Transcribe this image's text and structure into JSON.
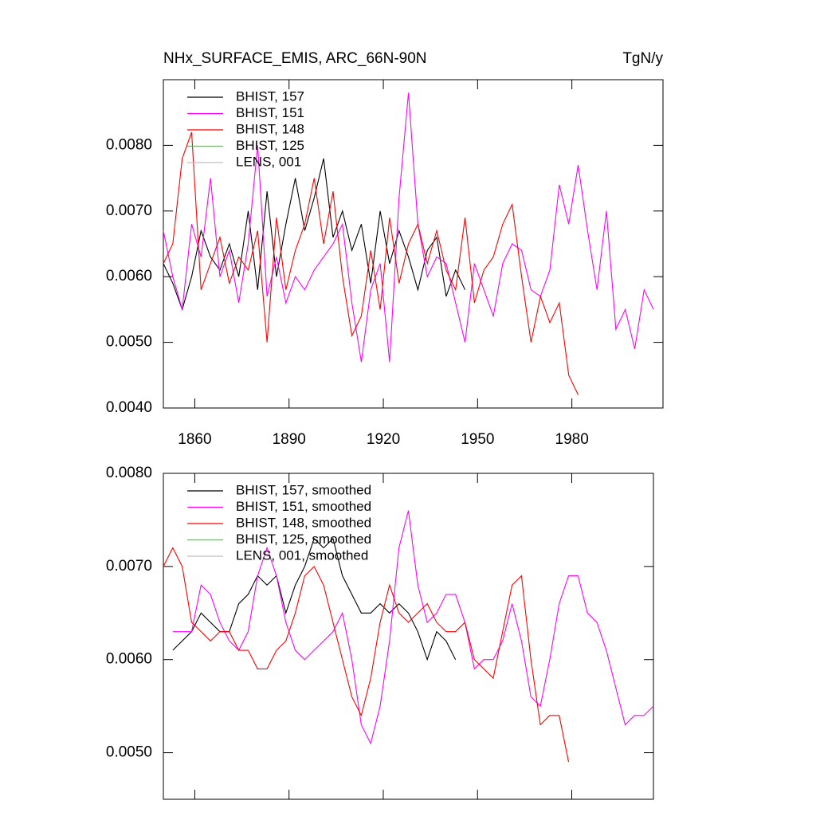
{
  "chart_data": [
    {
      "type": "line",
      "title": "NHx_SURFACE_EMIS, ARC_66N-90N",
      "right_title": "TgN/y",
      "legend": "upper left",
      "show_xtick_labels": true,
      "x": [
        1850,
        1853,
        1856,
        1859,
        1862,
        1865,
        1868,
        1871,
        1874,
        1877,
        1880,
        1883,
        1886,
        1889,
        1892,
        1895,
        1898,
        1901,
        1904,
        1907,
        1910,
        1913,
        1916,
        1919,
        1922,
        1925,
        1928,
        1931,
        1934,
        1937,
        1940,
        1943,
        1946,
        1949,
        1952,
        1955,
        1958,
        1961,
        1964,
        1967,
        1970,
        1973,
        1976,
        1979,
        1982,
        1985,
        1988,
        1991,
        1994,
        1997,
        2000,
        2003,
        2006
      ],
      "xlim": [
        1850,
        2009
      ],
      "ylim": [
        0.004,
        0.009
      ],
      "xticks": [
        1860,
        1890,
        1920,
        1950,
        1980
      ],
      "yticks": [
        {
          "value": 0.004,
          "label": "0.0040"
        },
        {
          "value": 0.005,
          "label": "0.0050"
        },
        {
          "value": 0.006,
          "label": "0.0060"
        },
        {
          "value": 0.007,
          "label": "0.0070"
        },
        {
          "value": 0.008,
          "label": "0.0080"
        }
      ],
      "series": [
        {
          "name": "BHIST, 157",
          "color": "#000000",
          "values": [
            0.0062,
            0.0059,
            0.0055,
            0.006,
            0.0067,
            0.0063,
            0.0061,
            0.0065,
            0.006,
            0.007,
            0.0058,
            0.0073,
            0.006,
            0.0068,
            0.0075,
            0.0067,
            0.0072,
            0.0078,
            0.0066,
            0.007,
            0.0064,
            0.0068,
            0.0059,
            0.007,
            0.0062,
            0.0067,
            0.0063,
            0.0058,
            0.0064,
            0.0066,
            0.0057,
            0.0061,
            0.0058,
            null,
            null,
            null,
            null,
            null,
            null,
            null,
            null,
            null,
            null,
            null,
            null,
            null,
            null,
            null,
            null,
            null,
            null,
            null,
            null
          ]
        },
        {
          "name": "BHIST, 151",
          "color": "#ff00ff",
          "values": [
            0.0067,
            0.006,
            0.0055,
            0.0068,
            0.0063,
            0.0075,
            0.006,
            0.0064,
            0.0056,
            0.0065,
            0.008,
            0.0057,
            0.0063,
            0.0056,
            0.006,
            0.0058,
            0.0061,
            0.0063,
            0.0065,
            0.0068,
            0.0056,
            0.0047,
            0.0058,
            0.0062,
            0.0047,
            0.0072,
            0.0088,
            0.0068,
            0.006,
            0.0063,
            0.0062,
            0.0056,
            0.005,
            0.0062,
            0.0058,
            0.0054,
            0.0062,
            0.0065,
            0.0064,
            0.0058,
            0.0057,
            0.0061,
            0.0074,
            0.0068,
            0.0077,
            0.0067,
            0.0058,
            0.007,
            0.0052,
            0.0055,
            0.0049,
            0.0058,
            0.0055
          ]
        },
        {
          "name": "BHIST, 148",
          "color": "#ff0000",
          "values": [
            0.0062,
            0.0065,
            0.0078,
            0.0082,
            0.0058,
            0.0062,
            0.0066,
            0.0059,
            0.0063,
            0.0061,
            0.0067,
            0.005,
            0.0069,
            0.0058,
            0.0064,
            0.0068,
            0.0075,
            0.0065,
            0.0073,
            0.006,
            0.0051,
            0.0054,
            0.0064,
            0.0055,
            0.0069,
            0.0059,
            0.0065,
            0.0068,
            0.0062,
            0.0067,
            0.0061,
            0.0058,
            0.0069,
            0.0056,
            0.0061,
            0.0063,
            0.0068,
            0.0071,
            0.006,
            0.005,
            0.0057,
            0.0053,
            0.0056,
            0.0045,
            0.0042,
            null,
            null,
            null,
            null,
            null,
            null,
            null,
            null
          ]
        },
        {
          "name": "BHIST, 125",
          "color": "#00ff00",
          "values": [
            null,
            null,
            null,
            null,
            null,
            null,
            null,
            null,
            null,
            null,
            null,
            null,
            null,
            null,
            null,
            null,
            null,
            null,
            null,
            null,
            null,
            null,
            null,
            null,
            null,
            null,
            null,
            null,
            null,
            null,
            null,
            null,
            null,
            null,
            null,
            null,
            null,
            null,
            null,
            null,
            null,
            null,
            null,
            null,
            null,
            null,
            null,
            null,
            null,
            null,
            null,
            null,
            null
          ]
        },
        {
          "name": "LENS, 001",
          "color": "#c0c0c0",
          "values": [
            null,
            null,
            null,
            null,
            null,
            null,
            null,
            null,
            null,
            null,
            null,
            null,
            null,
            null,
            null,
            null,
            null,
            null,
            null,
            null,
            null,
            null,
            null,
            null,
            null,
            null,
            null,
            null,
            null,
            null,
            null,
            null,
            null,
            null,
            null,
            null,
            null,
            null,
            null,
            null,
            null,
            null,
            null,
            null,
            null,
            null,
            null,
            null,
            null,
            null,
            null,
            null,
            null
          ]
        }
      ]
    },
    {
      "type": "line",
      "legend": "upper left",
      "show_xtick_labels": false,
      "x": [
        1850,
        1853,
        1856,
        1859,
        1862,
        1865,
        1868,
        1871,
        1874,
        1877,
        1880,
        1883,
        1886,
        1889,
        1892,
        1895,
        1898,
        1901,
        1904,
        1907,
        1910,
        1913,
        1916,
        1919,
        1922,
        1925,
        1928,
        1931,
        1934,
        1937,
        1940,
        1943,
        1946,
        1949,
        1952,
        1955,
        1958,
        1961,
        1964,
        1967,
        1970,
        1973,
        1976,
        1979,
        1982,
        1985,
        1988,
        1991,
        1994,
        1997,
        2000,
        2003,
        2006
      ],
      "xlim": [
        1850,
        2006
      ],
      "ylim": [
        0.0045,
        0.008
      ],
      "xticks": [
        1860,
        1890,
        1920,
        1950,
        1980
      ],
      "yticks": [
        {
          "value": 0.005,
          "label": "0.0050"
        },
        {
          "value": 0.006,
          "label": "0.0060"
        },
        {
          "value": 0.007,
          "label": "0.0070"
        },
        {
          "value": 0.008,
          "label": "0.0080"
        }
      ],
      "series": [
        {
          "name": "BHIST, 157, smoothed",
          "color": "#000000",
          "values": [
            null,
            0.0061,
            0.0062,
            0.0063,
            0.0065,
            0.0064,
            0.0063,
            0.0063,
            0.0066,
            0.0067,
            0.0069,
            0.0068,
            0.0069,
            0.0065,
            0.0068,
            0.007,
            0.0073,
            0.0072,
            0.0073,
            0.0069,
            0.0067,
            0.0065,
            0.0065,
            0.0066,
            0.0065,
            0.0066,
            0.0065,
            0.0063,
            0.006,
            0.0063,
            0.0062,
            0.006,
            null,
            null,
            null,
            null,
            null,
            null,
            null,
            null,
            null,
            null,
            null,
            null,
            null,
            null,
            null,
            null,
            null,
            null,
            null,
            null,
            null
          ]
        },
        {
          "name": "BHIST, 151, smoothed",
          "color": "#ff00ff",
          "values": [
            null,
            0.0063,
            0.0063,
            0.0063,
            0.0068,
            0.0067,
            0.0064,
            0.0062,
            0.0061,
            0.0063,
            0.0069,
            0.0072,
            0.0069,
            0.0064,
            0.0061,
            0.006,
            0.0061,
            0.0062,
            0.0063,
            0.0065,
            0.006,
            0.0053,
            0.0051,
            0.0055,
            0.0062,
            0.0072,
            0.0076,
            0.0068,
            0.0064,
            0.0065,
            0.0067,
            0.0067,
            0.0064,
            0.0059,
            0.006,
            0.006,
            0.0062,
            0.0066,
            0.0062,
            0.0056,
            0.0055,
            0.006,
            0.0066,
            0.0069,
            0.0069,
            0.0065,
            0.0064,
            0.0061,
            0.0057,
            0.0053,
            0.0054,
            0.0054,
            0.0055
          ]
        },
        {
          "name": "BHIST, 148, smoothed",
          "color": "#ff0000",
          "values": [
            0.007,
            0.0072,
            0.007,
            0.0064,
            0.0063,
            0.0062,
            0.0063,
            0.0063,
            0.0061,
            0.0061,
            0.0059,
            0.0059,
            0.0061,
            0.0062,
            0.0065,
            0.0069,
            0.007,
            0.0068,
            0.0064,
            0.006,
            0.0056,
            0.0054,
            0.0058,
            0.0064,
            0.0068,
            0.0065,
            0.0064,
            0.0065,
            0.0066,
            0.0064,
            0.0063,
            0.0063,
            0.0064,
            0.006,
            0.0059,
            0.0058,
            0.0063,
            0.0068,
            0.0069,
            0.006,
            0.0053,
            0.0054,
            0.0054,
            0.0049,
            null,
            null,
            null,
            null,
            null,
            null,
            null,
            null,
            null
          ]
        },
        {
          "name": "BHIST, 125, smoothed",
          "color": "#00ff00",
          "values": [
            null,
            null,
            null,
            null,
            null,
            null,
            null,
            null,
            null,
            null,
            null,
            null,
            null,
            null,
            null,
            null,
            null,
            null,
            null,
            null,
            null,
            null,
            null,
            null,
            null,
            null,
            null,
            null,
            null,
            null,
            null,
            null,
            null,
            null,
            null,
            null,
            null,
            null,
            null,
            null,
            null,
            null,
            null,
            null,
            null,
            null,
            null,
            null,
            null,
            null,
            null,
            null,
            null
          ]
        },
        {
          "name": "LENS, 001, smoothed",
          "color": "#c0c0c0",
          "values": [
            null,
            null,
            null,
            null,
            null,
            null,
            null,
            null,
            null,
            null,
            null,
            null,
            null,
            null,
            null,
            null,
            null,
            null,
            null,
            null,
            null,
            null,
            null,
            null,
            null,
            null,
            null,
            null,
            null,
            null,
            null,
            null,
            null,
            null,
            null,
            null,
            null,
            null,
            null,
            null,
            null,
            null,
            null,
            null,
            null,
            null,
            null,
            null,
            null,
            null,
            null,
            null,
            null
          ]
        }
      ]
    }
  ]
}
